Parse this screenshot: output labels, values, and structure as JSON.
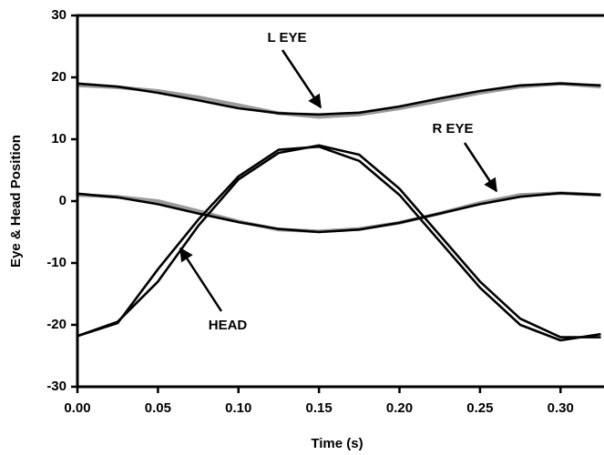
{
  "chart_data": {
    "type": "line",
    "xlabel": "Time (s)",
    "ylabel": "Eye & Head Position",
    "xlim": [
      0,
      0.327
    ],
    "ylim": [
      -30,
      30
    ],
    "xticks": [
      {
        "value": 0,
        "label": "0.00"
      },
      {
        "value": 0.05,
        "label": "0.05"
      },
      {
        "value": 0.1,
        "label": "0.10"
      },
      {
        "value": 0.15,
        "label": "0.15"
      },
      {
        "value": 0.2,
        "label": "0.20"
      },
      {
        "value": 0.25,
        "label": "0.25"
      },
      {
        "value": 0.3,
        "label": "0.30"
      }
    ],
    "yticks": [
      30,
      20,
      10,
      0,
      -10,
      -20,
      -30
    ],
    "x": [
      0,
      0.025,
      0.05,
      0.075,
      0.1,
      0.125,
      0.15,
      0.175,
      0.2,
      0.225,
      0.25,
      0.275,
      0.3,
      0.325
    ],
    "series": [
      {
        "color": "#9a9a9a",
        "values": [
          18.7,
          18.4,
          17.8,
          16.8,
          15.5,
          14.2,
          13.6,
          14,
          15,
          16.2,
          17.5,
          18.5,
          19,
          18.5
        ]
      },
      {
        "color": "#000000",
        "values": [
          19,
          18.5,
          17.5,
          16.3,
          15,
          14.2,
          14,
          14.3,
          15.3,
          16.6,
          17.8,
          18.7,
          19,
          18.7
        ]
      },
      {
        "color": "#9a9a9a",
        "values": [
          1,
          0.7,
          0,
          -1.6,
          -3.3,
          -4.6,
          -4.9,
          -4.5,
          -3.5,
          -2,
          -0.3,
          1,
          1.3,
          1
        ]
      },
      {
        "color": "#000000",
        "values": [
          1.2,
          0.6,
          -0.5,
          -2,
          -3.4,
          -4.5,
          -5,
          -4.6,
          -3.5,
          -2,
          -0.5,
          0.7,
          1.3,
          1
        ]
      },
      {
        "color": "#000000",
        "values": [
          -21.8,
          -19.5,
          -13,
          -4,
          3.5,
          7.8,
          9,
          7.5,
          2,
          -5.5,
          -13,
          -19,
          -22,
          -22
        ]
      },
      {
        "color": "#000000",
        "values": [
          -21.8,
          -19.7,
          -11,
          -3,
          4,
          8.3,
          8.8,
          6.5,
          1,
          -6.5,
          -14,
          -20,
          -22.5,
          -21.5
        ]
      }
    ],
    "annotations": [
      "L EYE",
      "R EYE",
      "HEAD"
    ]
  }
}
